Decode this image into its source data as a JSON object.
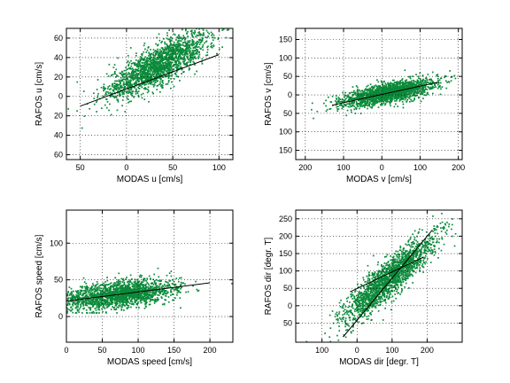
{
  "chart_data": [
    {
      "type": "scatter",
      "xlabel": "MODAS u [cm/s]",
      "ylabel": "RAFOS u [cm/s]",
      "xlim": [
        -65,
        115
      ],
      "ylim": [
        -65,
        70
      ],
      "xticks": [
        -50,
        0,
        50,
        100
      ],
      "xtick_labels": [
        "50",
        "0",
        "50",
        "100"
      ],
      "yticks": [
        -60,
        -40,
        -20,
        0,
        20,
        40,
        60
      ],
      "ytick_labels": [
        "60",
        "40",
        "20",
        "0",
        "20",
        "40",
        "60"
      ],
      "grid": true,
      "scatter": {
        "color": "#0b8a3a",
        "n": 1900,
        "x_mean": 35,
        "x_sd": 28,
        "slope": 0.5,
        "intercept": 15,
        "noise_sd": 10
      },
      "fit_line": {
        "x": [
          -50,
          100
        ],
        "y": [
          -10,
          43
        ]
      }
    },
    {
      "type": "scatter",
      "xlabel": "MODAS v [cm/s]",
      "ylabel": "RAFOS v [cm/s]",
      "xlim": [
        -225,
        210
      ],
      "ylim": [
        -175,
        180
      ],
      "xticks": [
        -200,
        -100,
        0,
        100,
        200
      ],
      "xtick_labels": [
        "200",
        "100",
        "0",
        "100",
        "200"
      ],
      "yticks": [
        -150,
        -100,
        -50,
        0,
        50,
        100,
        150
      ],
      "ytick_labels": [
        "150",
        "100",
        "50",
        "0",
        "50",
        "100",
        "150"
      ],
      "grid": true,
      "scatter": {
        "color": "#0b8a3a",
        "n": 1900,
        "x_mean": 15,
        "x_sd": 60,
        "slope": 0.2,
        "intercept": 2,
        "noise_sd": 13
      },
      "fit_line": {
        "x": [
          -130,
          150
        ],
        "y": [
          -28,
          35
        ]
      }
    },
    {
      "type": "scatter",
      "xlabel": "MODAS speed [cm/s]",
      "ylabel": "RAFOS speed [cm/s]",
      "xlim": [
        0,
        232
      ],
      "ylim": [
        -35,
        145
      ],
      "xticks": [
        0,
        50,
        100,
        150,
        200
      ],
      "xtick_labels": [
        "0",
        "50",
        "100",
        "150",
        "200"
      ],
      "yticks": [
        0,
        50,
        100
      ],
      "ytick_labels": [
        "0",
        "50",
        "100"
      ],
      "grid": true,
      "scatter": {
        "color": "#0b8a3a",
        "n": 1900,
        "x_mean": 75,
        "x_sd": 38,
        "slope": 0.12,
        "intercept": 21,
        "noise_sd": 9
      },
      "fit_line": {
        "x": [
          0,
          200
        ],
        "y": [
          21,
          46
        ]
      }
    },
    {
      "type": "scatter",
      "xlabel": "MODAS  dir [degr. T]",
      "ylabel": "RAFOS  dir [degr. T]",
      "xlim": [
        -175,
        300
      ],
      "ylim": [
        -105,
        275
      ],
      "xticks": [
        -100,
        0,
        100,
        200
      ],
      "xtick_labels": [
        "100",
        "0",
        "100",
        "200"
      ],
      "yticks": [
        -50,
        0,
        50,
        100,
        150,
        200,
        250
      ],
      "ytick_labels": [
        "50",
        "0",
        "50",
        "100",
        "150",
        "200",
        "250"
      ],
      "grid": true,
      "scatter": {
        "color": "#0b8a3a",
        "n": 1900,
        "x_mean": 90,
        "x_sd": 65,
        "slope": 0.85,
        "intercept": 0,
        "noise_sd": 28
      },
      "fit_line": {
        "x": [
          -40,
          215
        ],
        "y": [
          -90,
          218
        ]
      },
      "fit_line2": {
        "x": [
          -20,
          190
        ],
        "y": [
          40,
          140
        ]
      }
    }
  ]
}
